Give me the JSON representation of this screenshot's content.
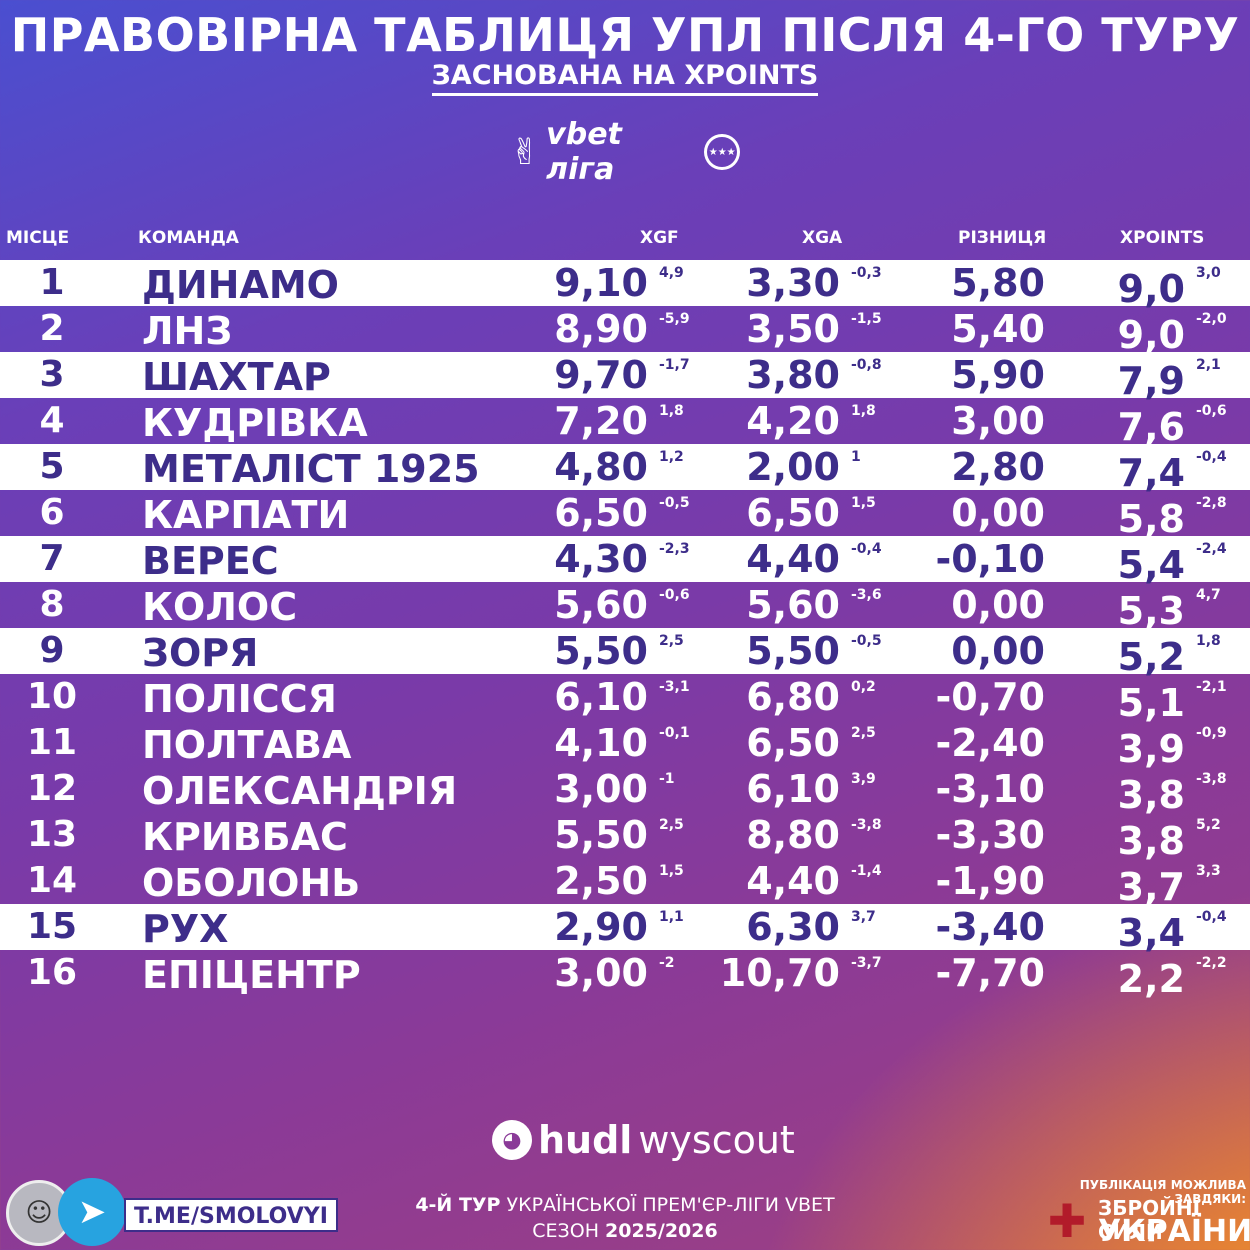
{
  "title": "ПРАВОВІРНА ТАБЛИЦЯ УПЛ ПІСЛЯ 4-ГО ТУРУ",
  "subtitle": "ЗАСНОВАНА НА XPOINTS",
  "league_logo": {
    "hand_icon": "✌",
    "name": "vbet ліга",
    "ball_icon": "★★★"
  },
  "headers": {
    "place": "МІСЦЕ",
    "team": "КОМАНДА",
    "xgf": "XGF",
    "xga": "XGA",
    "diff": "РІЗНИЦЯ",
    "xpoints": "XPOINTS"
  },
  "rows": [
    {
      "pos": "1",
      "team": "ДИНАМО",
      "xgf": "9,10",
      "xgf_d": "4,9",
      "xga": "3,30",
      "xga_d": "-0,3",
      "diff": "5,80",
      "xp": "9,0",
      "xp_d": "3,0"
    },
    {
      "pos": "2",
      "team": "ЛНЗ",
      "xgf": "8,90",
      "xgf_d": "-5,9",
      "xga": "3,50",
      "xga_d": "-1,5",
      "diff": "5,40",
      "xp": "9,0",
      "xp_d": "-2,0"
    },
    {
      "pos": "3",
      "team": "ШАХТАР",
      "xgf": "9,70",
      "xgf_d": "-1,7",
      "xga": "3,80",
      "xga_d": "-0,8",
      "diff": "5,90",
      "xp": "7,9",
      "xp_d": "2,1"
    },
    {
      "pos": "4",
      "team": "КУДРІВКА",
      "xgf": "7,20",
      "xgf_d": "1,8",
      "xga": "4,20",
      "xga_d": "1,8",
      "diff": "3,00",
      "xp": "7,6",
      "xp_d": "-0,6"
    },
    {
      "pos": "5",
      "team": "МЕТАЛІСТ 1925",
      "xgf": "4,80",
      "xgf_d": "1,2",
      "xga": "2,00",
      "xga_d": "1",
      "diff": "2,80",
      "xp": "7,4",
      "xp_d": "-0,4"
    },
    {
      "pos": "6",
      "team": "КАРПАТИ",
      "xgf": "6,50",
      "xgf_d": "-0,5",
      "xga": "6,50",
      "xga_d": "1,5",
      "diff": "0,00",
      "xp": "5,8",
      "xp_d": "-2,8"
    },
    {
      "pos": "7",
      "team": "ВЕРЕС",
      "xgf": "4,30",
      "xgf_d": "-2,3",
      "xga": "4,40",
      "xga_d": "-0,4",
      "diff": "-0,10",
      "xp": "5,4",
      "xp_d": "-2,4"
    },
    {
      "pos": "8",
      "team": "КОЛОС",
      "xgf": "5,60",
      "xgf_d": "-0,6",
      "xga": "5,60",
      "xga_d": "-3,6",
      "diff": "0,00",
      "xp": "5,3",
      "xp_d": "4,7"
    },
    {
      "pos": "9",
      "team": "ЗОРЯ",
      "xgf": "5,50",
      "xgf_d": "2,5",
      "xga": "5,50",
      "xga_d": "-0,5",
      "diff": "0,00",
      "xp": "5,2",
      "xp_d": "1,8"
    },
    {
      "pos": "10",
      "team": "ПОЛІССЯ",
      "xgf": "6,10",
      "xgf_d": "-3,1",
      "xga": "6,80",
      "xga_d": "0,2",
      "diff": "-0,70",
      "xp": "5,1",
      "xp_d": "-2,1"
    },
    {
      "pos": "11",
      "team": "ПОЛТАВА",
      "xgf": "4,10",
      "xgf_d": "-0,1",
      "xga": "6,50",
      "xga_d": "2,5",
      "diff": "-2,40",
      "xp": "3,9",
      "xp_d": "-0,9"
    },
    {
      "pos": "12",
      "team": "ОЛЕКСАНДРІЯ",
      "xgf": "3,00",
      "xgf_d": "-1",
      "xga": "6,10",
      "xga_d": "3,9",
      "diff": "-3,10",
      "xp": "3,8",
      "xp_d": "-3,8"
    },
    {
      "pos": "13",
      "team": "КРИВБАС",
      "xgf": "5,50",
      "xgf_d": "2,5",
      "xga": "8,80",
      "xga_d": "-3,8",
      "diff": "-3,30",
      "xp": "3,8",
      "xp_d": "5,2"
    },
    {
      "pos": "14",
      "team": "ОБОЛОНЬ",
      "xgf": "2,50",
      "xgf_d": "1,5",
      "xga": "4,40",
      "xga_d": "-1,4",
      "diff": "-1,90",
      "xp": "3,7",
      "xp_d": "3,3"
    },
    {
      "pos": "15",
      "team": "РУХ",
      "xgf": "2,90",
      "xgf_d": "1,1",
      "xga": "6,30",
      "xga_d": "3,7",
      "diff": "-3,40",
      "xp": "3,4",
      "xp_d": "-0,4"
    },
    {
      "pos": "16",
      "team": "ЕПІЦЕНТР",
      "xgf": "3,00",
      "xgf_d": "-2",
      "xga": "10,70",
      "xga_d": "-3,7",
      "diff": "-7,70",
      "xp": "2,2",
      "xp_d": "-2,2"
    }
  ],
  "row_styles": [
    "light",
    "dark",
    "light",
    "dark",
    "light",
    "dark",
    "light",
    "dark",
    "light",
    "dark",
    "dark",
    "dark",
    "dark",
    "dark",
    "light",
    "last"
  ],
  "hudl": {
    "icon": "hudl-icon",
    "part1": "hudl",
    "part2": "wyscout"
  },
  "footer": {
    "line1_bold": "4-Й ТУР",
    "line1_rest": " УКРАЇНСЬКОЇ ПРЕМ'ЄР-ЛІГИ VBET",
    "line2_rest": "СЕЗОН ",
    "line2_bold": "2025/2026"
  },
  "telegram": {
    "link": "T.ME/SMOLOVYI",
    "icon": "telegram-icon"
  },
  "thanks": "ПУБЛІКАЦІЯ МОЖЛИВА ЗАВДЯКИ:",
  "zsu": {
    "line1": "ЗБРОЙНІ СИЛИ",
    "line2": "УКРАЇНИ"
  },
  "colors": {
    "row_light": "#ffffff",
    "row_text_dark": "#3d2d8a",
    "bg_start": "#4a4fd0",
    "bg_end": "#f0b020"
  }
}
